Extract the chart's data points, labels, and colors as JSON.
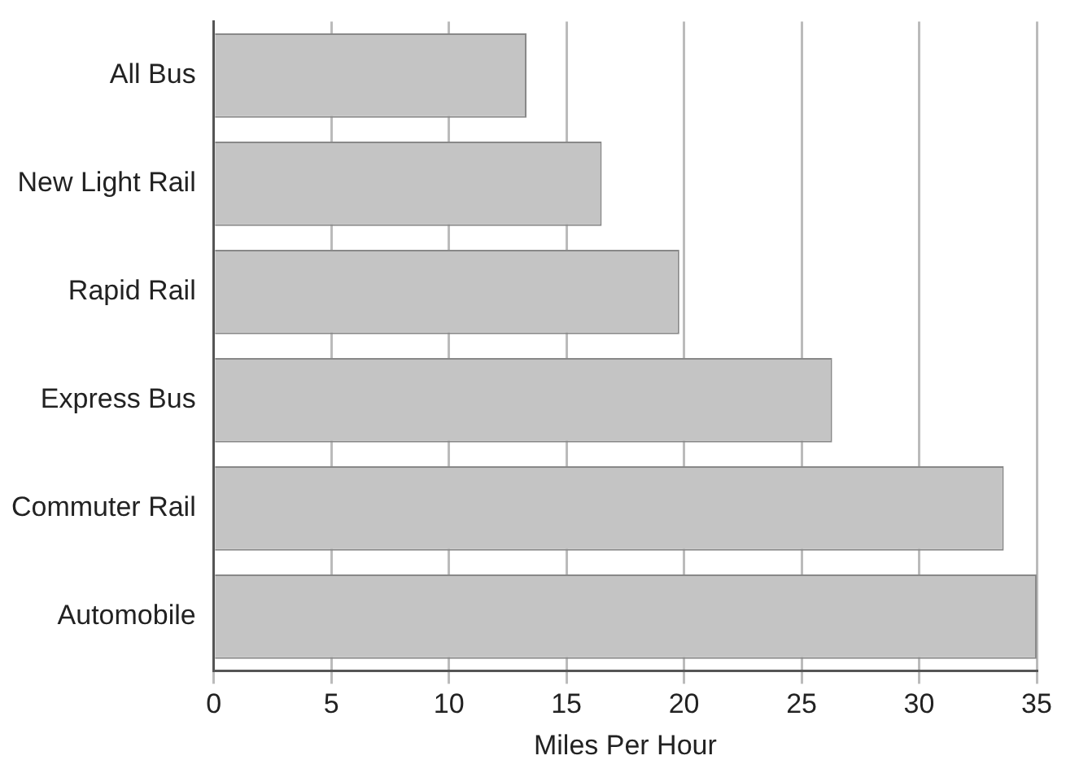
{
  "chart_data": {
    "type": "bar",
    "orientation": "horizontal",
    "xlabel": "Miles Per Hour",
    "categories": [
      "All Bus",
      "New Light Rail",
      "Rapid Rail",
      "Express Bus",
      "Commuter Rail",
      "Automobile"
    ],
    "values": [
      13.3,
      16.5,
      19.8,
      26.3,
      33.6,
      35
    ],
    "color": "#c4c4c4",
    "xlim": [
      0,
      35
    ],
    "xticks": [
      0,
      5,
      10,
      15,
      20,
      25,
      30,
      35
    ],
    "grid": "x"
  }
}
